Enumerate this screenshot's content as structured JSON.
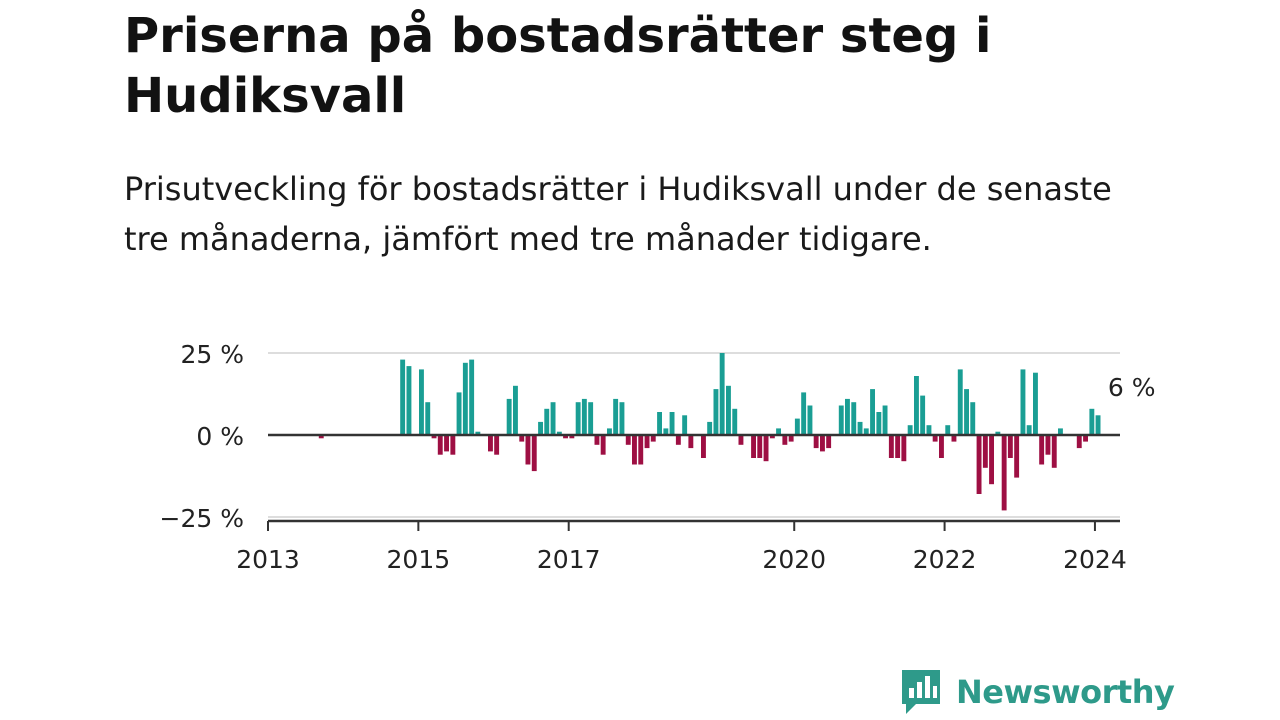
{
  "title": "Priserna på bostadsrätter steg i Hudiksvall",
  "subtitle": "Prisutveckling för bostadsrätter i Hudiksvall under de senaste tre månaderna, jämfört med tre månader tidigare.",
  "brand": {
    "name": "Newsworthy",
    "color": "#2e9a8a"
  },
  "colors": {
    "positive": "#1a9e94",
    "negative": "#9e0f43",
    "axis": "#333333",
    "grid": "#dddddd"
  },
  "chart_data": {
    "type": "bar",
    "x_unit": "month",
    "start": "2013-01",
    "end": "2024-04",
    "ylim": [
      -25,
      25
    ],
    "yticks": [
      25,
      0,
      -25
    ],
    "ytick_labels": [
      "25 %",
      "0 %",
      "−25 %"
    ],
    "xticks": [
      "2013",
      "2015",
      "2017",
      "2020",
      "2022",
      "2024"
    ],
    "annotation": {
      "text": "6 %",
      "month": "2024-04"
    },
    "series": [
      {
        "values": [
          {
            "m": "2013-09",
            "v": -1
          },
          {
            "m": "2014-10",
            "v": 23
          },
          {
            "m": "2014-11",
            "v": 21
          },
          {
            "m": "2015-01",
            "v": 20
          },
          {
            "m": "2015-02",
            "v": 10
          },
          {
            "m": "2015-03",
            "v": -1
          },
          {
            "m": "2015-04",
            "v": -6
          },
          {
            "m": "2015-05",
            "v": -5
          },
          {
            "m": "2015-06",
            "v": -6
          },
          {
            "m": "2015-07",
            "v": 13
          },
          {
            "m": "2015-08",
            "v": 22
          },
          {
            "m": "2015-09",
            "v": 23
          },
          {
            "m": "2015-10",
            "v": 1
          },
          {
            "m": "2015-12",
            "v": -5
          },
          {
            "m": "2016-01",
            "v": -6
          },
          {
            "m": "2016-03",
            "v": 11
          },
          {
            "m": "2016-04",
            "v": 15
          },
          {
            "m": "2016-05",
            "v": -2
          },
          {
            "m": "2016-06",
            "v": -9
          },
          {
            "m": "2016-07",
            "v": -11
          },
          {
            "m": "2016-08",
            "v": 4
          },
          {
            "m": "2016-09",
            "v": 8
          },
          {
            "m": "2016-10",
            "v": 10
          },
          {
            "m": "2016-11",
            "v": 1
          },
          {
            "m": "2016-12",
            "v": -1
          },
          {
            "m": "2017-01",
            "v": -1
          },
          {
            "m": "2017-02",
            "v": 10
          },
          {
            "m": "2017-03",
            "v": 11
          },
          {
            "m": "2017-04",
            "v": 10
          },
          {
            "m": "2017-05",
            "v": -3
          },
          {
            "m": "2017-06",
            "v": -6
          },
          {
            "m": "2017-07",
            "v": 2
          },
          {
            "m": "2017-08",
            "v": 11
          },
          {
            "m": "2017-09",
            "v": 10
          },
          {
            "m": "2017-10",
            "v": -3
          },
          {
            "m": "2017-11",
            "v": -9
          },
          {
            "m": "2017-12",
            "v": -9
          },
          {
            "m": "2018-01",
            "v": -4
          },
          {
            "m": "2018-02",
            "v": -2
          },
          {
            "m": "2018-03",
            "v": 7
          },
          {
            "m": "2018-04",
            "v": 2
          },
          {
            "m": "2018-05",
            "v": 7
          },
          {
            "m": "2018-06",
            "v": -3
          },
          {
            "m": "2018-07",
            "v": 6
          },
          {
            "m": "2018-08",
            "v": -4
          },
          {
            "m": "2018-10",
            "v": -7
          },
          {
            "m": "2018-11",
            "v": 4
          },
          {
            "m": "2018-12",
            "v": 14
          },
          {
            "m": "2019-01",
            "v": 25
          },
          {
            "m": "2019-02",
            "v": 15
          },
          {
            "m": "2019-03",
            "v": 8
          },
          {
            "m": "2019-04",
            "v": -3
          },
          {
            "m": "2019-06",
            "v": -7
          },
          {
            "m": "2019-07",
            "v": -7
          },
          {
            "m": "2019-08",
            "v": -8
          },
          {
            "m": "2019-09",
            "v": -1
          },
          {
            "m": "2019-10",
            "v": 2
          },
          {
            "m": "2019-11",
            "v": -3
          },
          {
            "m": "2019-12",
            "v": -2
          },
          {
            "m": "2020-01",
            "v": 5
          },
          {
            "m": "2020-02",
            "v": 13
          },
          {
            "m": "2020-03",
            "v": 9
          },
          {
            "m": "2020-04",
            "v": -4
          },
          {
            "m": "2020-05",
            "v": -5
          },
          {
            "m": "2020-06",
            "v": -4
          },
          {
            "m": "2020-08",
            "v": 9
          },
          {
            "m": "2020-09",
            "v": 11
          },
          {
            "m": "2020-10",
            "v": 10
          },
          {
            "m": "2020-11",
            "v": 4
          },
          {
            "m": "2020-12",
            "v": 2
          },
          {
            "m": "2021-01",
            "v": 14
          },
          {
            "m": "2021-02",
            "v": 7
          },
          {
            "m": "2021-03",
            "v": 9
          },
          {
            "m": "2021-04",
            "v": -7
          },
          {
            "m": "2021-05",
            "v": -7
          },
          {
            "m": "2021-06",
            "v": -8
          },
          {
            "m": "2021-07",
            "v": 3
          },
          {
            "m": "2021-08",
            "v": 18
          },
          {
            "m": "2021-09",
            "v": 12
          },
          {
            "m": "2021-10",
            "v": 3
          },
          {
            "m": "2021-11",
            "v": -2
          },
          {
            "m": "2021-12",
            "v": -7
          },
          {
            "m": "2022-01",
            "v": 3
          },
          {
            "m": "2022-02",
            "v": -2
          },
          {
            "m": "2022-03",
            "v": 20
          },
          {
            "m": "2022-04",
            "v": 14
          },
          {
            "m": "2022-05",
            "v": 10
          },
          {
            "m": "2022-06",
            "v": -18
          },
          {
            "m": "2022-07",
            "v": -10
          },
          {
            "m": "2022-08",
            "v": -15
          },
          {
            "m": "2022-09",
            "v": 1
          },
          {
            "m": "2022-10",
            "v": -23
          },
          {
            "m": "2022-11",
            "v": -7
          },
          {
            "m": "2022-12",
            "v": -13
          },
          {
            "m": "2023-01",
            "v": 20
          },
          {
            "m": "2023-02",
            "v": 3
          },
          {
            "m": "2023-03",
            "v": 19
          },
          {
            "m": "2023-04",
            "v": -9
          },
          {
            "m": "2023-05",
            "v": -6
          },
          {
            "m": "2023-06",
            "v": -10
          },
          {
            "m": "2023-07",
            "v": 2
          },
          {
            "m": "2023-10",
            "v": -4
          },
          {
            "m": "2023-11",
            "v": -2
          },
          {
            "m": "2023-12",
            "v": 8
          },
          {
            "m": "2024-01",
            "v": 6
          }
        ]
      }
    ]
  }
}
